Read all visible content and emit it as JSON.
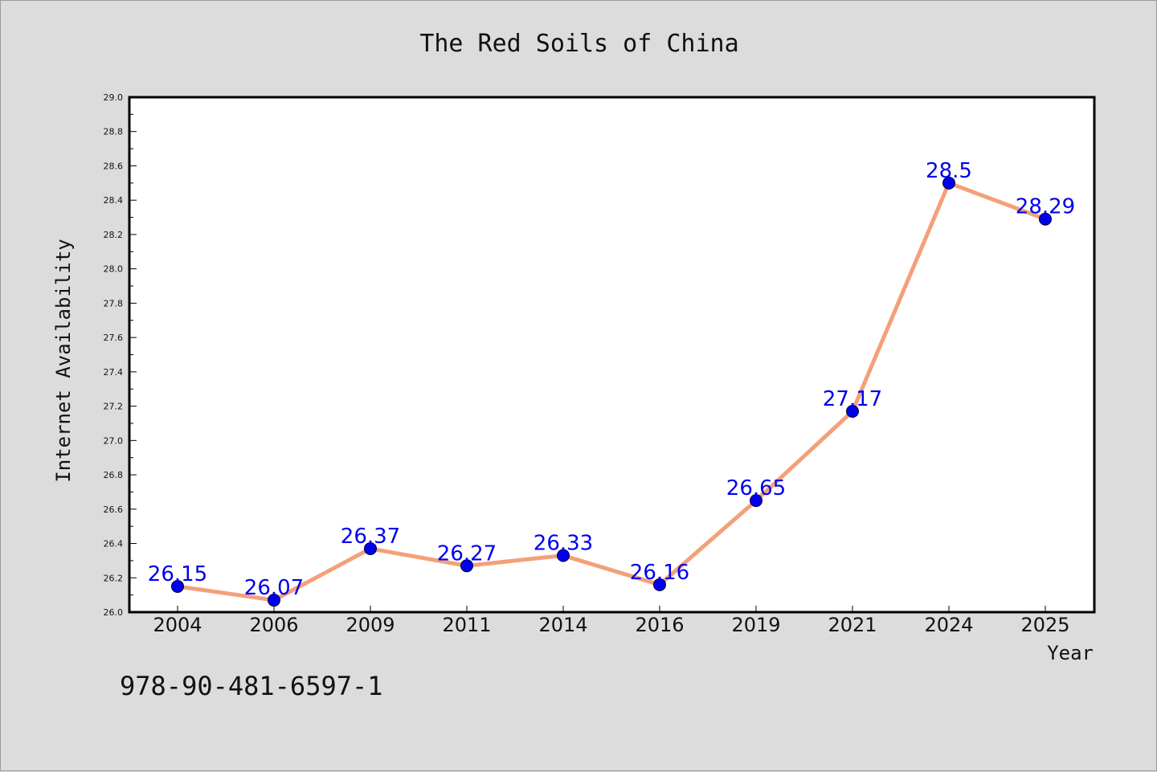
{
  "chart_data": {
    "type": "line",
    "title": "The Red Soils of China",
    "xlabel": "Year",
    "ylabel": "Internet Availability",
    "categories": [
      "2004",
      "2006",
      "2009",
      "2011",
      "2014",
      "2016",
      "2019",
      "2021",
      "2024",
      "2025"
    ],
    "values": [
      26.15,
      26.07,
      26.37,
      26.27,
      26.33,
      26.16,
      26.65,
      27.17,
      28.5,
      28.29
    ],
    "data_labels": [
      "26.15",
      "26.07",
      "26.37",
      "26.27",
      "26.33",
      "26.16",
      "26.65",
      "27.17",
      "28.5",
      "28.29"
    ],
    "ylim": [
      26.0,
      29.0
    ],
    "yticks": [
      "26.0",
      "26.2",
      "26.4",
      "26.6",
      "26.8",
      "27.0",
      "27.2",
      "27.4",
      "27.6",
      "27.8",
      "28.0",
      "28.2",
      "28.4",
      "28.6",
      "28.8",
      "29.0"
    ],
    "grid": false,
    "legend": "none",
    "line_color": "#f4a07a",
    "marker_color": "#0000ee",
    "label_color": "#0000ee"
  },
  "footer": {
    "isbn": "978-90-481-6597-1"
  }
}
